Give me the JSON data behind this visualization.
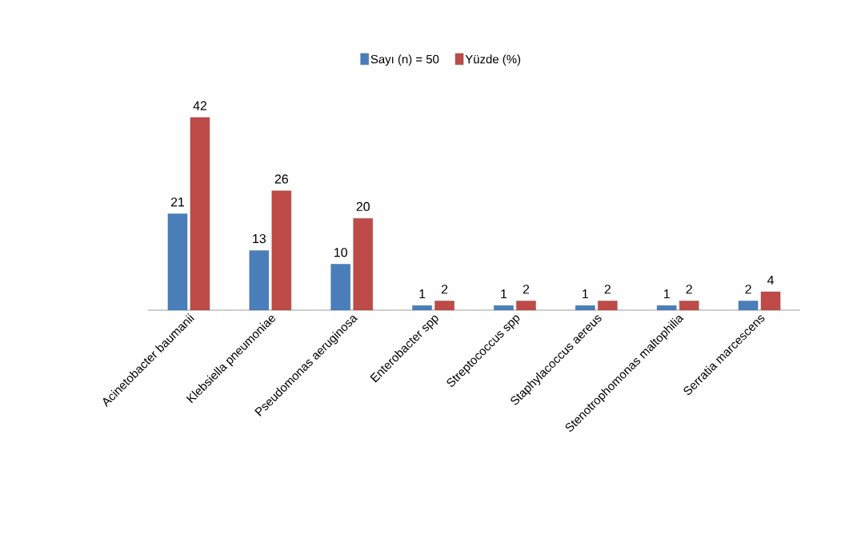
{
  "chart_data": {
    "type": "bar",
    "categories": [
      "Acinetobacter baumanii",
      "Klebsiella pneumoniae",
      "Pseudomonas aeruginosa",
      "Enterobacter spp",
      "Streptococcus spp",
      "Staphylacoccus aereus",
      "Stenotrophomonas maltophilia",
      "Serratia marcescens"
    ],
    "series": [
      {
        "name": "Sayı (n) = 50",
        "color": "#4a7ebb",
        "values": [
          21,
          13,
          10,
          1,
          1,
          1,
          1,
          2
        ]
      },
      {
        "name": "Yüzde (%)",
        "color": "#be4b48",
        "values": [
          42,
          26,
          20,
          2,
          2,
          2,
          2,
          4
        ]
      }
    ],
    "data_labels": true,
    "legend": "top"
  }
}
